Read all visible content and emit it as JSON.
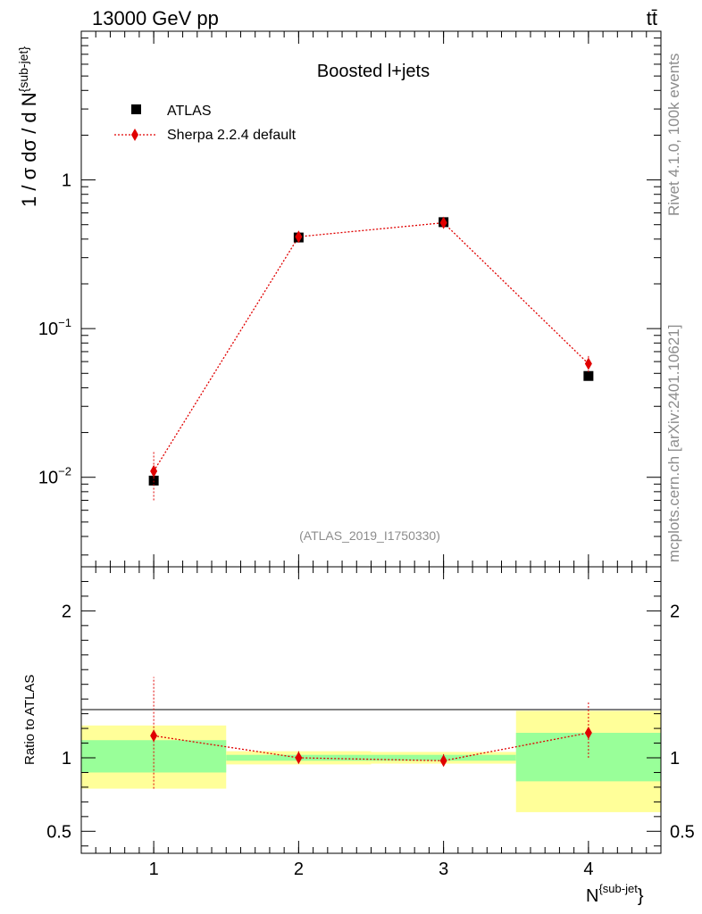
{
  "header": {
    "energy_label": "13000 GeV pp",
    "process_label": "tt̄"
  },
  "side_text": {
    "rivet": "Rivet 4.1.0,  100k events",
    "mcplots": "mcplots.cern.ch [arXiv:2401.10621]"
  },
  "chart_data": [
    {
      "type": "scatter",
      "panel": "main",
      "title": "Boosted l+jets",
      "watermark": "(ATLAS_2019_I1750330)",
      "ylabel": "1 / σ dσ / d N^{sub-jet}",
      "yscale": "log",
      "ylim": [
        0.0025,
        10
      ],
      "xlim": [
        0.5,
        4.5
      ],
      "y_tick_labels": [
        "10^-2",
        "10^-1",
        "1"
      ],
      "legend_position": "top-left",
      "series": [
        {
          "name": "ATLAS",
          "marker": "square",
          "color": "#000000",
          "x": [
            1,
            2,
            3,
            4
          ],
          "values": [
            0.0095,
            0.41,
            0.52,
            0.048
          ]
        },
        {
          "name": "Sherpa 2.2.4 default",
          "marker": "diamond",
          "color": "#e00000",
          "line": "dotted",
          "x": [
            1,
            2,
            3,
            4
          ],
          "values": [
            0.011,
            0.415,
            0.515,
            0.058
          ],
          "err_low": [
            0.007,
            0.4,
            0.5,
            0.051
          ],
          "err_high": [
            0.015,
            0.43,
            0.53,
            0.066
          ]
        }
      ]
    },
    {
      "type": "scatter",
      "panel": "ratio",
      "ylabel": "Ratio to ATLAS",
      "xlabel": "N^{sub-jet}",
      "ylim": [
        0.35,
        2.3
      ],
      "xlim": [
        0.5,
        4.5
      ],
      "x_tick_labels": [
        "1",
        "2",
        "3",
        "4"
      ],
      "y_tick_labels": [
        "0.5",
        "1",
        "2"
      ],
      "bands": [
        {
          "xmin": 0.5,
          "xmax": 1.5,
          "green_low": 0.9,
          "green_high": 1.12,
          "yellow_low": 0.79,
          "yellow_high": 1.22
        },
        {
          "xmin": 1.5,
          "xmax": 2.5,
          "green_low": 0.98,
          "green_high": 1.02,
          "yellow_low": 0.955,
          "yellow_high": 1.045
        },
        {
          "xmin": 2.5,
          "xmax": 3.5,
          "green_low": 0.98,
          "green_high": 1.02,
          "yellow_low": 0.96,
          "yellow_high": 1.04
        },
        {
          "xmin": 3.5,
          "xmax": 4.5,
          "green_low": 0.84,
          "green_high": 1.17,
          "yellow_low": 0.63,
          "yellow_high": 1.32
        }
      ],
      "series": [
        {
          "name": "Sherpa 2.2.4 default",
          "color": "#e00000",
          "x": [
            1,
            2,
            3,
            4
          ],
          "values": [
            1.15,
            1.0,
            0.98,
            1.17
          ],
          "err_low": [
            0.79,
            0.96,
            0.945,
            1.0
          ],
          "err_high": [
            1.55,
            1.05,
            1.025,
            1.38
          ]
        }
      ]
    }
  ]
}
